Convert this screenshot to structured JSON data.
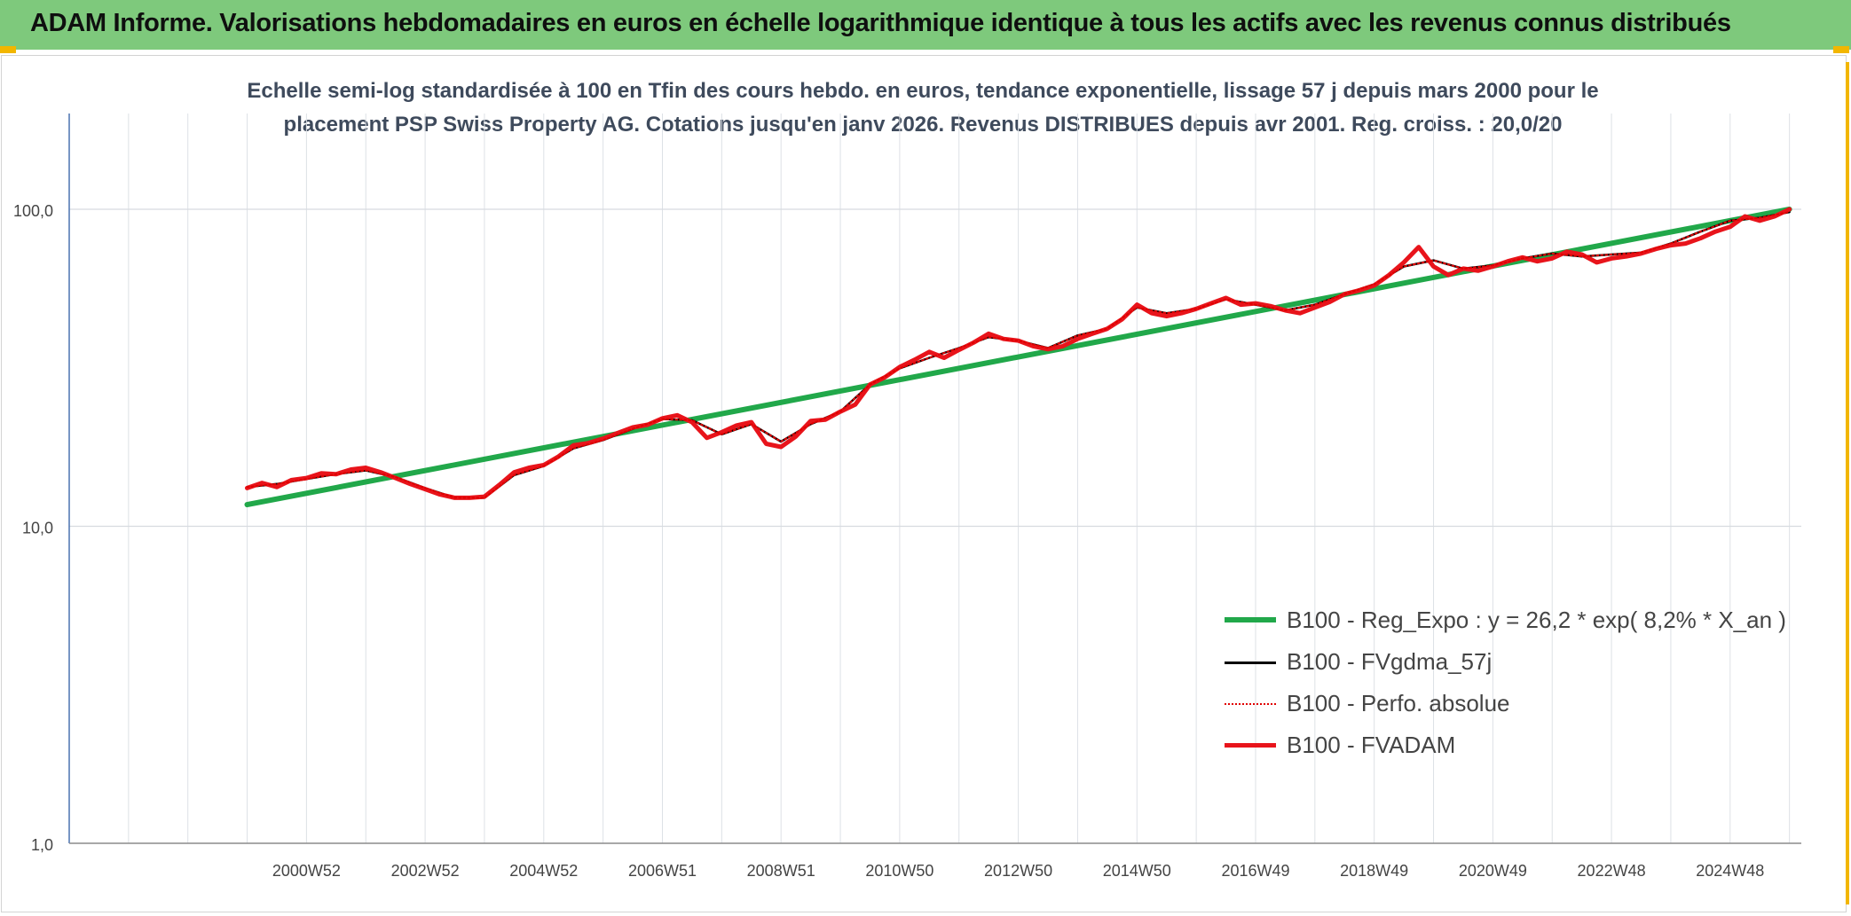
{
  "banner": {
    "title": "ADAM Informe. Valorisations hebdomadaires en euros en échelle logarithmique identique à tous les actifs avec les revenus connus distribués"
  },
  "subtitle": {
    "line1": "Echelle semi-log standardisée à 100 en Tfin des cours hebdo. en euros, tendance exponentielle, lissage 57 j depuis mars 2000 pour le",
    "line2": "placement PSP Swiss Property AG. Cotations jusqu'en janv 2026. Revenus DISTRIBUES depuis avr 2001. Reg. croiss. : 20,0/20"
  },
  "chart_data": {
    "type": "line",
    "y_scale": "log",
    "ylim": [
      1,
      100
    ],
    "y_ticks": [
      "1,0",
      "10,0",
      "100,0"
    ],
    "x_ticks": [
      "2000W52",
      "2002W52",
      "2004W52",
      "2006W51",
      "2008W51",
      "2010W50",
      "2012W50",
      "2014W50",
      "2016W49",
      "2018W49",
      "2020W49",
      "2022W48",
      "2024W48"
    ],
    "x_range": [
      1997.0,
      2026.2
    ],
    "grid": true,
    "legend_position": "bottom-right",
    "series": [
      {
        "name": "B100 - Reg_Expo : y = 26,2 * exp( 8,2% *  X_an )",
        "color": "#21a84a",
        "style": "solid",
        "x": [
          2000.0,
          2026.0
        ],
        "y": [
          11.7,
          100.0
        ]
      },
      {
        "name": "B100 - FVgdma_57j",
        "color": "#000000",
        "style": "solid",
        "x": [
          2000.0,
          2000.5,
          2001.0,
          2001.5,
          2002.0,
          2002.5,
          2003.0,
          2003.5,
          2004.0,
          2004.5,
          2005.0,
          2005.5,
          2006.0,
          2006.5,
          2007.0,
          2007.5,
          2008.0,
          2008.5,
          2009.0,
          2009.5,
          2010.0,
          2010.5,
          2011.0,
          2011.5,
          2012.0,
          2012.5,
          2013.0,
          2013.5,
          2014.0,
          2014.5,
          2015.0,
          2015.5,
          2016.0,
          2016.5,
          2017.0,
          2017.5,
          2018.0,
          2018.5,
          2019.0,
          2019.5,
          2020.0,
          2020.5,
          2021.0,
          2021.5,
          2022.0,
          2022.5,
          2023.0,
          2023.5,
          2024.0,
          2024.5,
          2025.0,
          2025.5,
          2026.0
        ],
        "y": [
          13.3,
          13.6,
          14.1,
          14.6,
          15.0,
          14.3,
          13.2,
          12.3,
          12.3,
          14.5,
          15.5,
          17.6,
          18.7,
          20.3,
          21.8,
          21.6,
          19.5,
          21.0,
          18.5,
          21.0,
          23.0,
          28.0,
          31.5,
          34.0,
          36.5,
          39.5,
          38.5,
          36.5,
          40.0,
          42.0,
          49.0,
          47.0,
          48.5,
          52.0,
          50.0,
          48.0,
          50.0,
          54.0,
          58.0,
          66.0,
          69.0,
          65.0,
          66.5,
          70.0,
          72.5,
          71.0,
          72.0,
          73.0,
          78.0,
          85.0,
          92.0,
          94.0,
          98.0
        ]
      },
      {
        "name": "B100 - Perfo. absolue",
        "color": "#e00000",
        "style": "dotted",
        "x": [
          2000.0,
          2000.5,
          2001.0,
          2001.5,
          2002.0,
          2002.5,
          2003.0,
          2003.5,
          2004.0,
          2004.5,
          2005.0,
          2005.5,
          2006.0,
          2006.5,
          2007.0,
          2007.5,
          2008.0,
          2008.5,
          2009.0,
          2009.5,
          2010.0,
          2010.5,
          2011.0,
          2011.5,
          2012.0,
          2012.5,
          2013.0,
          2013.5,
          2014.0,
          2014.5,
          2015.0,
          2015.5,
          2016.0,
          2016.5,
          2017.0,
          2017.5,
          2018.0,
          2018.5,
          2019.0,
          2019.5,
          2020.0,
          2020.5,
          2021.0,
          2021.5,
          2022.0,
          2022.5,
          2023.0,
          2023.5,
          2024.0,
          2024.5,
          2025.0,
          2025.5,
          2026.0
        ],
        "y": [
          13.3,
          13.6,
          14.1,
          14.6,
          15.0,
          14.3,
          13.2,
          12.3,
          12.3,
          14.5,
          15.5,
          17.6,
          18.7,
          20.3,
          21.8,
          21.6,
          19.5,
          21.0,
          18.5,
          21.0,
          23.0,
          28.0,
          31.5,
          34.0,
          36.5,
          39.5,
          38.5,
          36.5,
          40.0,
          42.0,
          49.0,
          47.0,
          48.5,
          52.0,
          50.0,
          48.0,
          50.0,
          54.0,
          58.0,
          66.0,
          69.0,
          65.0,
          66.5,
          70.0,
          72.5,
          71.0,
          72.0,
          73.0,
          78.0,
          85.0,
          92.0,
          94.0,
          98.0
        ]
      },
      {
        "name": "B100 - FVADAM",
        "color": "#e8141b",
        "style": "solid",
        "x": [
          2000.0,
          2000.25,
          2000.5,
          2000.75,
          2001.0,
          2001.25,
          2001.5,
          2001.75,
          2002.0,
          2002.25,
          2002.5,
          2002.75,
          2003.0,
          2003.25,
          2003.5,
          2003.75,
          2004.0,
          2004.25,
          2004.5,
          2004.75,
          2005.0,
          2005.25,
          2005.5,
          2005.75,
          2006.0,
          2006.25,
          2006.5,
          2006.75,
          2007.0,
          2007.25,
          2007.5,
          2007.75,
          2008.0,
          2008.25,
          2008.5,
          2008.75,
          2009.0,
          2009.25,
          2009.5,
          2009.75,
          2010.0,
          2010.25,
          2010.5,
          2010.75,
          2011.0,
          2011.25,
          2011.5,
          2011.75,
          2012.0,
          2012.25,
          2012.5,
          2012.75,
          2013.0,
          2013.25,
          2013.5,
          2013.75,
          2014.0,
          2014.25,
          2014.5,
          2014.75,
          2015.0,
          2015.25,
          2015.5,
          2015.75,
          2016.0,
          2016.25,
          2016.5,
          2016.75,
          2017.0,
          2017.25,
          2017.5,
          2017.75,
          2018.0,
          2018.25,
          2018.5,
          2018.75,
          2019.0,
          2019.25,
          2019.5,
          2019.75,
          2020.0,
          2020.25,
          2020.5,
          2020.75,
          2021.0,
          2021.25,
          2021.5,
          2021.75,
          2022.0,
          2022.25,
          2022.5,
          2022.75,
          2023.0,
          2023.25,
          2023.5,
          2023.75,
          2024.0,
          2024.25,
          2024.5,
          2024.75,
          2025.0,
          2025.25,
          2025.5,
          2025.75,
          2026.0
        ],
        "y": [
          13.2,
          13.7,
          13.3,
          14.0,
          14.2,
          14.7,
          14.6,
          15.1,
          15.3,
          14.8,
          14.2,
          13.6,
          13.1,
          12.6,
          12.3,
          12.3,
          12.4,
          13.5,
          14.8,
          15.3,
          15.6,
          16.6,
          18.0,
          18.3,
          18.9,
          19.7,
          20.5,
          20.9,
          21.9,
          22.4,
          21.3,
          19.0,
          19.8,
          20.8,
          21.3,
          18.2,
          17.8,
          19.2,
          21.5,
          21.7,
          23.0,
          24.2,
          28.0,
          29.5,
          31.8,
          33.5,
          35.5,
          34.0,
          36.0,
          38.0,
          40.5,
          39.0,
          38.5,
          37.0,
          36.2,
          37.0,
          39.0,
          40.5,
          42.0,
          45.0,
          50.0,
          47.0,
          46.0,
          47.0,
          48.5,
          50.5,
          52.5,
          50.0,
          50.5,
          49.5,
          48.0,
          47.0,
          49.0,
          51.0,
          54.0,
          55.5,
          57.5,
          62.0,
          68.0,
          76.0,
          66.0,
          62.0,
          65.0,
          64.0,
          66.0,
          68.5,
          70.5,
          68.5,
          70.0,
          73.5,
          72.0,
          68.0,
          70.0,
          71.0,
          72.5,
          75.0,
          77.0,
          78.0,
          81.0,
          85.0,
          88.0,
          95.0,
          92.0,
          95.0,
          100.0
        ]
      }
    ]
  }
}
